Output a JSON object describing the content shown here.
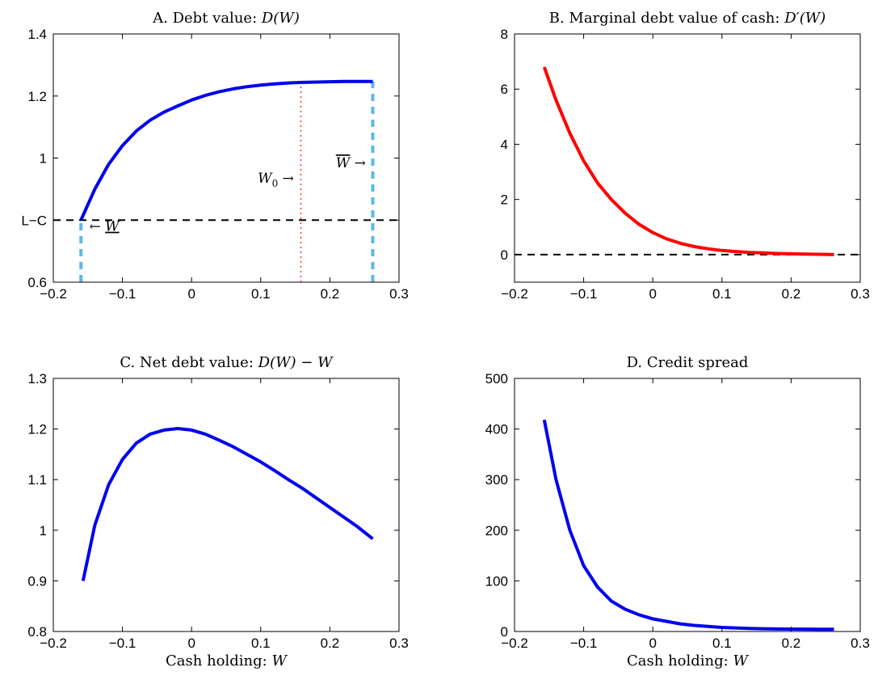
{
  "chart_data": [
    {
      "id": "A",
      "type": "line",
      "title": {
        "prefix": "A. Debt value: ",
        "math": "D(W)"
      },
      "xlabel": "",
      "xlim": [
        -0.2,
        0.3
      ],
      "ylim": [
        0.6,
        1.4
      ],
      "xticks": [
        -0.2,
        -0.1,
        0,
        0.1,
        0.2,
        0.3
      ],
      "xtick_labels": [
        "−0.2",
        "−0.1",
        "0",
        "0.1",
        "0.2",
        "0.3"
      ],
      "yticks": [
        0.6,
        0.8,
        1.0,
        1.2,
        1.4
      ],
      "ytick_labels": [
        "0.6",
        "L−C",
        "1",
        "1.2",
        "1.4"
      ],
      "series": [
        {
          "color": "#0000ee",
          "style": "solid",
          "x": [
            -0.16,
            -0.14,
            -0.12,
            -0.1,
            -0.08,
            -0.06,
            -0.04,
            -0.02,
            0.0,
            0.02,
            0.04,
            0.06,
            0.08,
            0.1,
            0.12,
            0.14,
            0.16,
            0.18,
            0.2,
            0.22,
            0.24,
            0.262
          ],
          "y": [
            0.8,
            0.9,
            0.98,
            1.04,
            1.087,
            1.122,
            1.148,
            1.168,
            1.187,
            1.202,
            1.214,
            1.223,
            1.23,
            1.235,
            1.239,
            1.242,
            1.244,
            1.245,
            1.246,
            1.247,
            1.247,
            1.247
          ]
        }
      ],
      "reference_lines": [
        {
          "orientation": "horizontal",
          "y": 0.8,
          "color": "#000000",
          "style": "dashed"
        },
        {
          "orientation": "vertical",
          "x": -0.16,
          "y_range": [
            0.6,
            0.8
          ],
          "color": "#5cb8e6",
          "style": "dashed"
        },
        {
          "orientation": "vertical",
          "x": 0.158,
          "y_range": [
            0.6,
            1.244
          ],
          "color": "#ff3030",
          "style": "dotted"
        },
        {
          "orientation": "vertical",
          "x": 0.262,
          "y_range": [
            0.6,
            1.247
          ],
          "color": "#5cb8e6",
          "style": "dashed"
        }
      ],
      "annotations": [
        {
          "arrow": "← ",
          "math": "W",
          "overline": false,
          "underline": true
        },
        {
          "math": "W",
          "subscript": "0",
          "arrow": " →"
        },
        {
          "math": "W",
          "overline": true,
          "arrow": " →"
        }
      ]
    },
    {
      "id": "B",
      "type": "line",
      "title": {
        "prefix": "B. Marginal debt value of cash: ",
        "math": "D′(W)"
      },
      "xlabel": "",
      "xlim": [
        -0.2,
        0.3
      ],
      "ylim": [
        -1,
        8
      ],
      "xticks": [
        -0.2,
        -0.1,
        0,
        0.1,
        0.2,
        0.3
      ],
      "xtick_labels": [
        "−0.2",
        "−0.1",
        "0",
        "0.1",
        "0.2",
        "0.3"
      ],
      "yticks": [
        0,
        2,
        4,
        6,
        8
      ],
      "ytick_labels": [
        "0",
        "2",
        "4",
        "6",
        "8"
      ],
      "series": [
        {
          "color": "#ff0000",
          "style": "solid",
          "x": [
            -0.157,
            -0.14,
            -0.12,
            -0.1,
            -0.08,
            -0.06,
            -0.04,
            -0.02,
            0.0,
            0.02,
            0.04,
            0.06,
            0.08,
            0.1,
            0.12,
            0.14,
            0.16,
            0.18,
            0.2,
            0.22,
            0.24,
            0.262
          ],
          "y": [
            6.8,
            5.6,
            4.4,
            3.4,
            2.6,
            2.0,
            1.5,
            1.1,
            0.8,
            0.57,
            0.41,
            0.29,
            0.21,
            0.15,
            0.11,
            0.08,
            0.06,
            0.04,
            0.03,
            0.02,
            0.01,
            0.0
          ]
        }
      ],
      "reference_lines": [
        {
          "orientation": "horizontal",
          "y": 0,
          "color": "#000000",
          "style": "dashed"
        }
      ],
      "annotations": []
    },
    {
      "id": "C",
      "type": "line",
      "title": {
        "prefix": "C. Net debt value: ",
        "math": "D(W) − W"
      },
      "xlabel": {
        "prefix": "Cash holding: ",
        "math": "W"
      },
      "xlim": [
        -0.2,
        0.3
      ],
      "ylim": [
        0.8,
        1.3
      ],
      "xticks": [
        -0.2,
        -0.1,
        0,
        0.1,
        0.2,
        0.3
      ],
      "xtick_labels": [
        "−0.2",
        "−0.1",
        "0",
        "0.1",
        "0.2",
        "0.3"
      ],
      "yticks": [
        0.8,
        0.9,
        1.0,
        1.1,
        1.2,
        1.3
      ],
      "ytick_labels": [
        "0.8",
        "0.9",
        "1",
        "1.1",
        "1.2",
        "1.3"
      ],
      "series": [
        {
          "color": "#0000ee",
          "style": "solid",
          "x": [
            -0.157,
            -0.14,
            -0.12,
            -0.1,
            -0.08,
            -0.06,
            -0.04,
            -0.02,
            0.0,
            0.02,
            0.04,
            0.06,
            0.08,
            0.1,
            0.12,
            0.14,
            0.16,
            0.18,
            0.2,
            0.22,
            0.24,
            0.262
          ],
          "y": [
            0.9,
            1.01,
            1.09,
            1.14,
            1.172,
            1.19,
            1.198,
            1.201,
            1.198,
            1.19,
            1.178,
            1.165,
            1.15,
            1.135,
            1.118,
            1.1,
            1.083,
            1.064,
            1.045,
            1.026,
            1.007,
            0.983
          ]
        }
      ],
      "reference_lines": [],
      "annotations": []
    },
    {
      "id": "D",
      "type": "line",
      "title": {
        "prefix": "D. Credit spread",
        "math": ""
      },
      "xlabel": {
        "prefix": "Cash holding: ",
        "math": "W"
      },
      "xlim": [
        -0.2,
        0.3
      ],
      "ylim": [
        0,
        500
      ],
      "xticks": [
        -0.2,
        -0.1,
        0,
        0.1,
        0.2,
        0.3
      ],
      "xtick_labels": [
        "−0.2",
        "−0.1",
        "0",
        "0.1",
        "0.2",
        "0.3"
      ],
      "yticks": [
        0,
        100,
        200,
        300,
        400,
        500
      ],
      "ytick_labels": [
        "0",
        "100",
        "200",
        "300",
        "400",
        "500"
      ],
      "series": [
        {
          "color": "#0000ee",
          "style": "solid",
          "x": [
            -0.157,
            -0.14,
            -0.12,
            -0.1,
            -0.08,
            -0.06,
            -0.04,
            -0.02,
            0.0,
            0.02,
            0.04,
            0.06,
            0.08,
            0.1,
            0.12,
            0.14,
            0.16,
            0.18,
            0.2,
            0.22,
            0.24,
            0.262
          ],
          "y": [
            418,
            300,
            200,
            130,
            88,
            60,
            44,
            33,
            25,
            20,
            15,
            12,
            10,
            8,
            7,
            6,
            5.5,
            5,
            4.8,
            4.6,
            4.5,
            4.5
          ]
        }
      ],
      "reference_lines": [],
      "annotations": []
    }
  ]
}
